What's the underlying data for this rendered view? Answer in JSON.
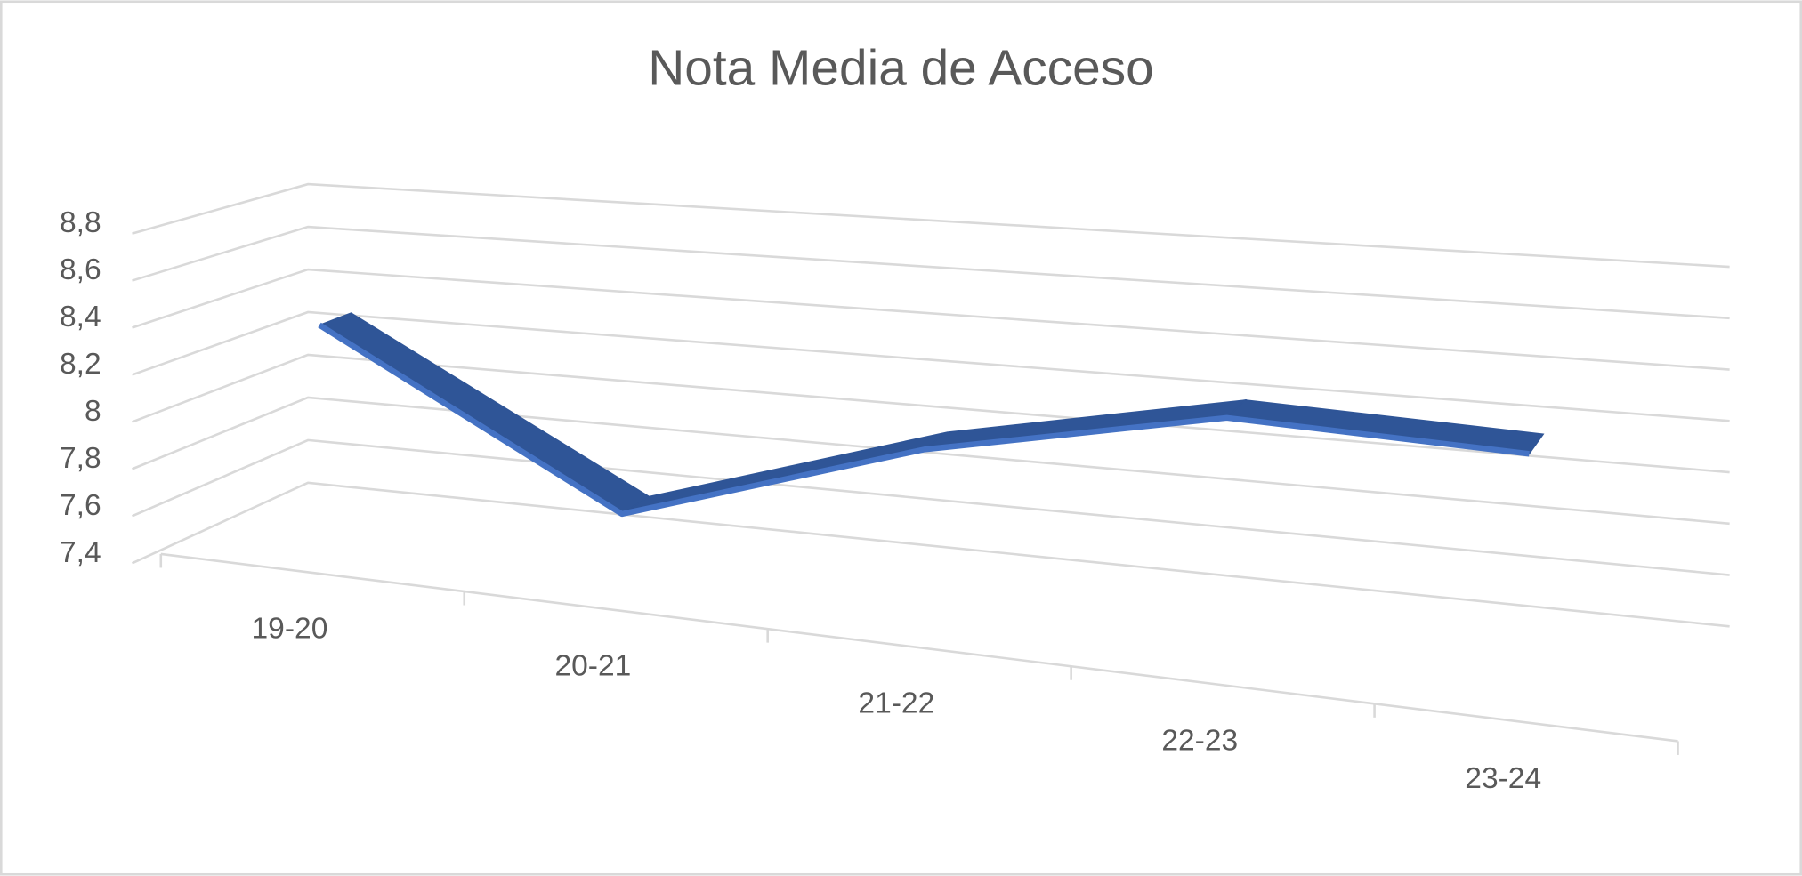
{
  "chart_data": {
    "type": "line3d",
    "title": "Nota Media de Acceso",
    "categories": [
      "19-20",
      "20-21",
      "21-22",
      "22-23",
      "23-24"
    ],
    "values": [
      8.42,
      7.77,
      8.15,
      8.38,
      8.35
    ],
    "color": "#2f5597",
    "ylim": [
      7.4,
      8.8
    ],
    "yticks": [
      {
        "value": 7.4,
        "label": "7,4"
      },
      {
        "value": 7.6,
        "label": "7,6"
      },
      {
        "value": 7.8,
        "label": "7,8"
      },
      8,
      {
        "value": 8.2,
        "label": "8,2"
      },
      {
        "value": 8.4,
        "label": "8,4"
      },
      {
        "value": 8.6,
        "label": "8,6"
      },
      {
        "value": 8.8,
        "label": "8,8"
      }
    ],
    "grid": true
  }
}
